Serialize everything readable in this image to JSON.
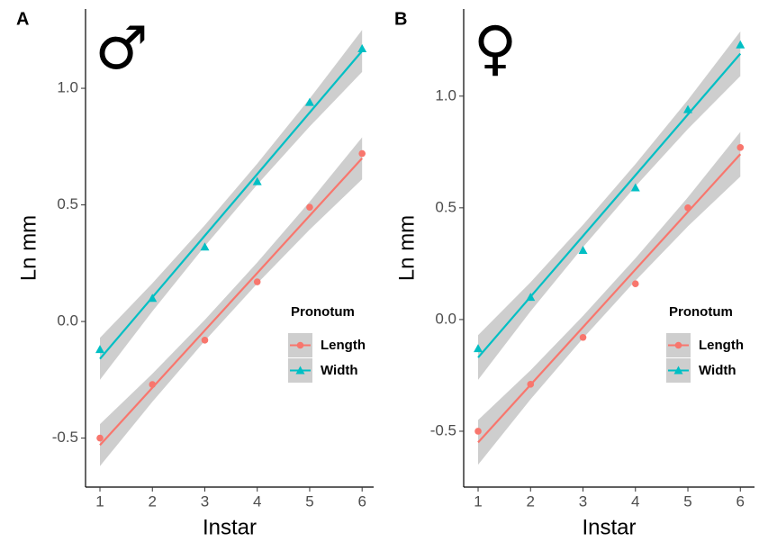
{
  "chart_data": [
    {
      "type": "line",
      "panel_label": "A",
      "annotation": "♂",
      "x_label": "Instar",
      "y_label": "Ln mm",
      "x": [
        1,
        2,
        3,
        4,
        5,
        6
      ],
      "xlim": [
        0.725,
        6.22
      ],
      "xticks": [
        1,
        2,
        3,
        4,
        5,
        6
      ],
      "ylim": [
        -0.71,
        1.34
      ],
      "yticks": [
        -0.5,
        {
          "value": 0,
          "label": "0.0"
        },
        0.5,
        {
          "value": 1,
          "label": "1.0"
        }
      ],
      "grid": false,
      "legend_title": "Pronotum",
      "legend_position": "center right",
      "band_color": "#bdbdbd",
      "series": [
        {
          "name": "Length",
          "color": "#f8766d",
          "marker": "circle",
          "values": [
            -0.5,
            -0.27,
            -0.08,
            0.17,
            0.49,
            0.72
          ],
          "fit": [
            -0.53,
            -0.284,
            -0.038,
            0.208,
            0.454,
            0.7
          ],
          "ci_lower": [
            -0.62,
            -0.344,
            -0.083,
            0.163,
            0.394,
            0.61
          ],
          "ci_upper": [
            -0.44,
            -0.224,
            0.007,
            0.253,
            0.514,
            0.79
          ]
        },
        {
          "name": "Width",
          "color": "#00bfc4",
          "marker": "triangle",
          "values": [
            -0.12,
            0.1,
            0.32,
            0.6,
            0.94,
            1.17
          ],
          "fit": [
            -0.16,
            0.104,
            0.368,
            0.632,
            0.896,
            1.16
          ],
          "ci_lower": [
            -0.25,
            0.044,
            0.323,
            0.587,
            0.836,
            1.07
          ],
          "ci_upper": [
            -0.07,
            0.164,
            0.413,
            0.677,
            0.956,
            1.25
          ]
        }
      ]
    },
    {
      "type": "line",
      "panel_label": "B",
      "annotation": "♀",
      "x_label": "Instar",
      "y_label": "Ln mm",
      "x": [
        1,
        2,
        3,
        4,
        5,
        6
      ],
      "xlim": [
        0.725,
        6.27
      ],
      "xticks": [
        1,
        2,
        3,
        4,
        5,
        6
      ],
      "ylim": [
        -0.75,
        1.39
      ],
      "yticks": [
        -0.5,
        {
          "value": 0,
          "label": "0.0"
        },
        0.5,
        {
          "value": 1,
          "label": "1.0"
        }
      ],
      "grid": false,
      "legend_title": "Pronotum",
      "legend_position": "center right",
      "band_color": "#bdbdbd",
      "series": [
        {
          "name": "Length",
          "color": "#f8766d",
          "marker": "circle",
          "values": [
            -0.5,
            -0.29,
            -0.08,
            0.16,
            0.5,
            0.77
          ],
          "fit": [
            -0.55,
            -0.292,
            -0.034,
            0.224,
            0.482,
            0.74
          ],
          "ci_lower": [
            -0.65,
            -0.357,
            -0.084,
            0.174,
            0.417,
            0.64
          ],
          "ci_upper": [
            -0.45,
            -0.227,
            0.016,
            0.274,
            0.547,
            0.84
          ]
        },
        {
          "name": "Width",
          "color": "#00bfc4",
          "marker": "triangle",
          "values": [
            -0.13,
            0.1,
            0.31,
            0.59,
            0.94,
            1.23
          ],
          "fit": [
            -0.17,
            0.102,
            0.374,
            0.646,
            0.918,
            1.19
          ],
          "ci_lower": [
            -0.27,
            0.037,
            0.324,
            0.596,
            0.853,
            1.09
          ],
          "ci_upper": [
            -0.07,
            0.167,
            0.424,
            0.696,
            0.983,
            1.29
          ]
        }
      ]
    }
  ]
}
